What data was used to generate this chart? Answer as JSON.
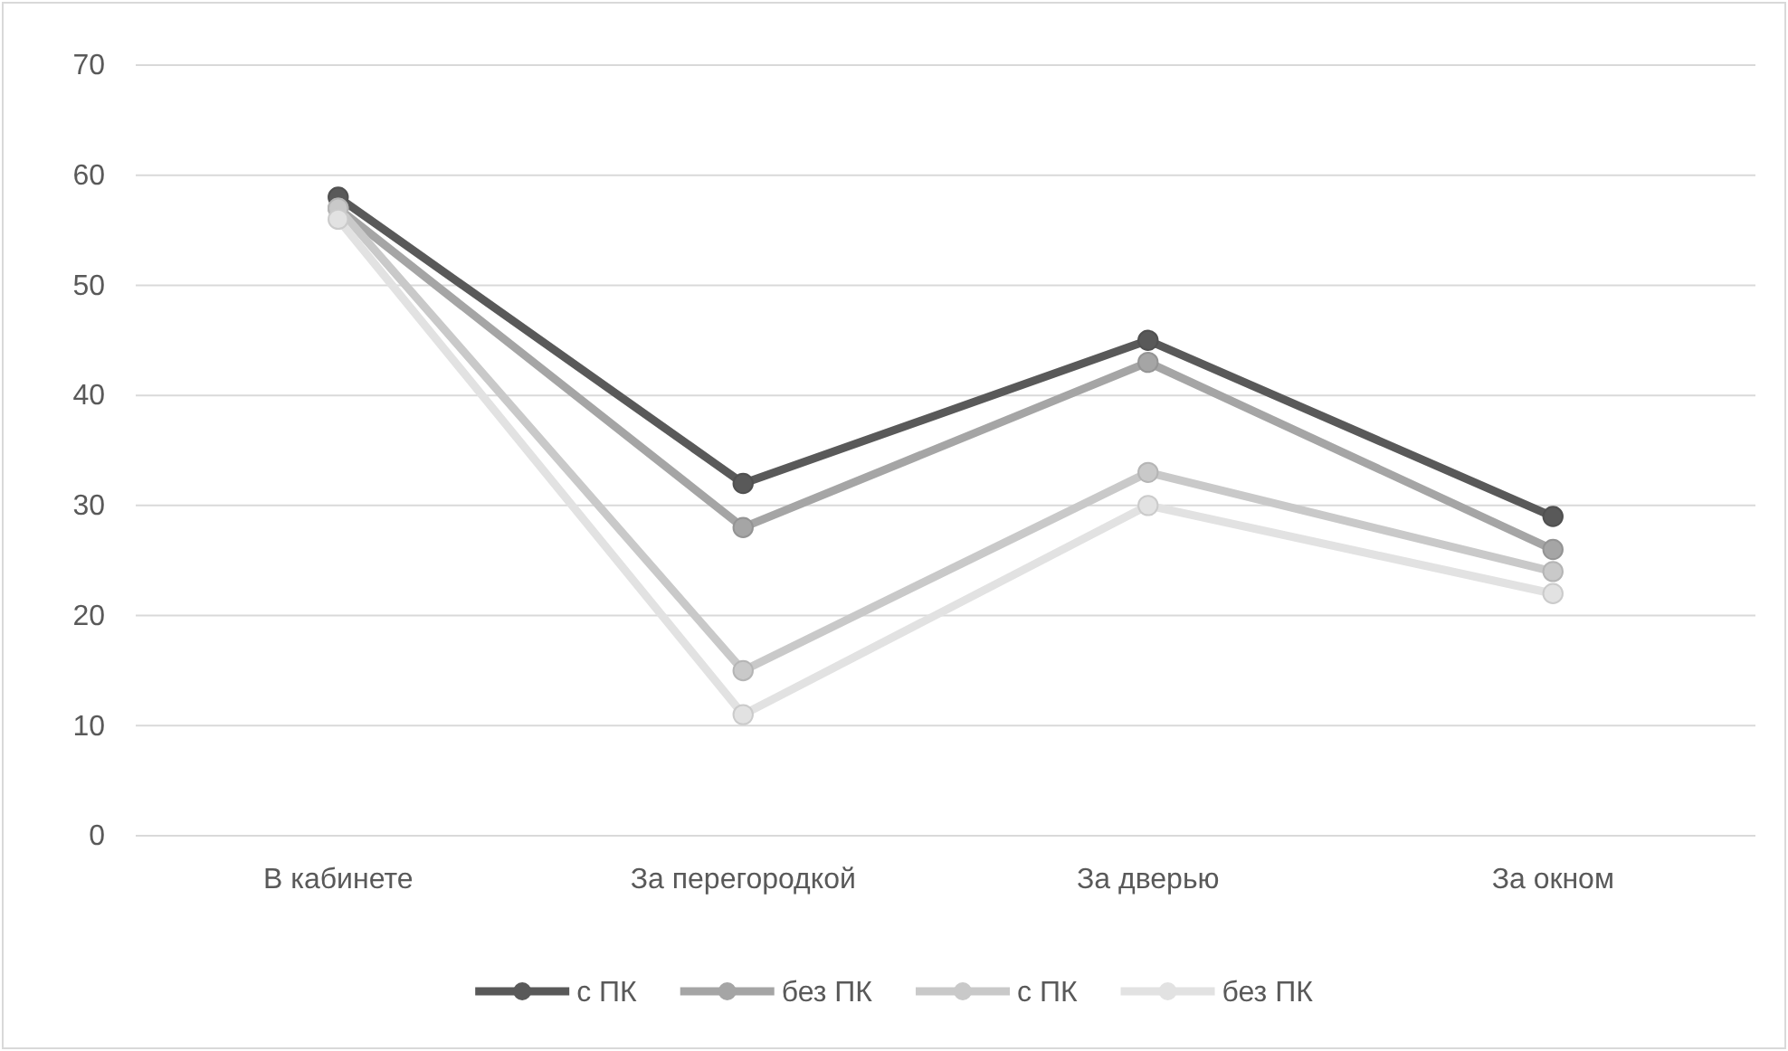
{
  "chart_data": {
    "type": "line",
    "categories": [
      "В кабинете",
      "За перегородкой",
      "За дверью",
      "За окном"
    ],
    "series": [
      {
        "name": "с ПК",
        "color": "#595959",
        "values": [
          58,
          32,
          45,
          29
        ]
      },
      {
        "name": "без ПК",
        "color": "#a5a5a5",
        "values": [
          57,
          28,
          43,
          26
        ]
      },
      {
        "name": "с ПК",
        "color": "#c9c9c9",
        "values": [
          57,
          15,
          33,
          24
        ]
      },
      {
        "name": "без ПК",
        "color": "#e2e2e2",
        "values": [
          56,
          11,
          30,
          22
        ]
      }
    ],
    "ylim": [
      0,
      70
    ],
    "yticks": [
      0,
      10,
      20,
      30,
      40,
      50,
      60,
      70
    ],
    "grid": "y",
    "legend": "bottom",
    "marker": "circle",
    "line_style": "solid"
  }
}
